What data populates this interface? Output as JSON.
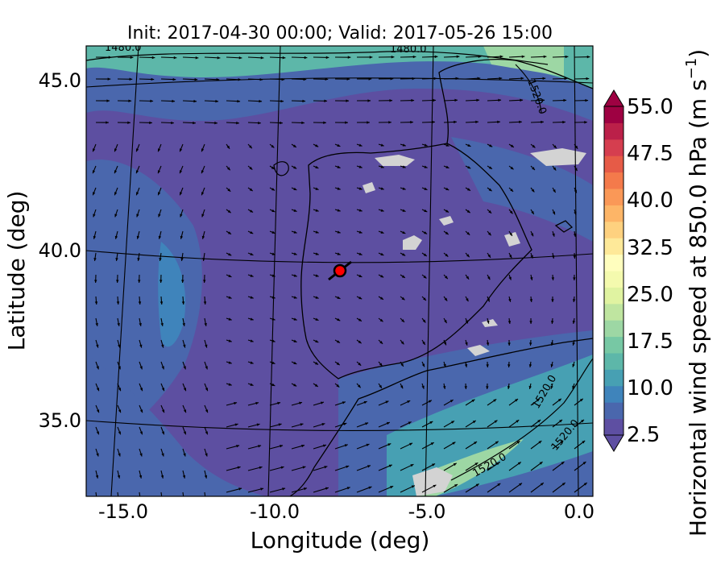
{
  "title": "Init: 2017-04-30 00:00; Valid: 2017-05-26 15:00",
  "map": {
    "xlabel": "Longitude (deg)",
    "ylabel": "Latitude (deg)",
    "lon_range": [
      -16.0,
      0.2
    ],
    "lat_range": [
      32.8,
      46.0
    ],
    "lon_ticks": [
      "-15.0",
      "-10.0",
      "-5.0",
      "0.0"
    ],
    "lat_ticks": [
      "35.0",
      "40.0",
      "45.0"
    ],
    "contour_labels": [
      "1480.0",
      "1480.0",
      "1520.0",
      "1520.0",
      "1520.0",
      "1520.0"
    ],
    "marker": {
      "lon": -7.6,
      "lat": 39.4,
      "color": "#ff0000"
    },
    "land_outline_color": "#000000",
    "missing_data_color": "#d3d3d3"
  },
  "colorbar": {
    "label": "Horizontal wind speed at 850.0 hPa (m s$^{-1}$)",
    "label_main": "Horizontal wind speed at 850.0 hPa (m s",
    "label_exp": "−1",
    "label_close": ")",
    "min": 2.5,
    "max": 55.0,
    "tick_labels": [
      "55.0",
      "47.5",
      "40.0",
      "32.5",
      "25.0",
      "17.5",
      "10.0",
      "2.5"
    ],
    "colors": [
      "#5e4fa2",
      "#4a67ad",
      "#3f84bb",
      "#47a0b3",
      "#5db7a9",
      "#77c8a4",
      "#9dd7a4",
      "#bfe5a0",
      "#e0f3a1",
      "#f4faae",
      "#fffebe",
      "#fee999",
      "#fed17f",
      "#fdb567",
      "#fa9857",
      "#f47a4b",
      "#e65b47",
      "#d53e4f",
      "#bb2049",
      "#9e0142"
    ]
  }
}
